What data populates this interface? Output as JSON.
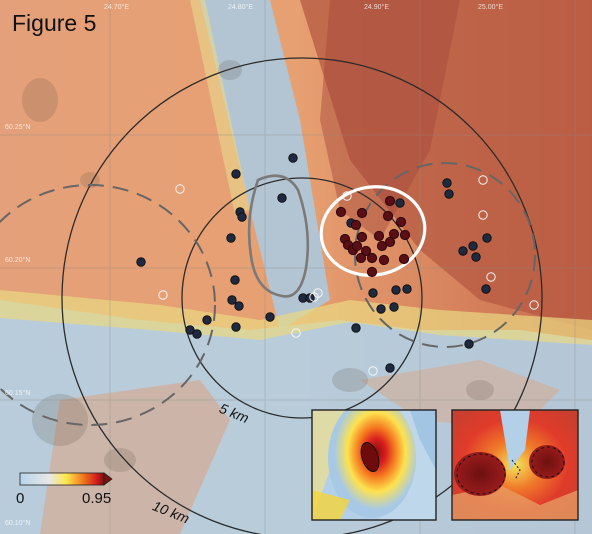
{
  "figure": {
    "title": "Figure 5",
    "top_ticks": [
      "24.70°E",
      "24.80°E",
      "24.90°E",
      "25.00°E"
    ],
    "left_ticks": [
      "60.25°N",
      "60.20°N",
      "60.15°N",
      "60.10°N"
    ]
  },
  "rings": [
    {
      "label": "5 km"
    },
    {
      "label": "10 km"
    }
  ],
  "colorbar": {
    "min": "0",
    "max": "0.95"
  },
  "colors": {
    "low": "#a9cbe3",
    "mid": "#e8d98c",
    "high": "#e57b4e",
    "max": "#8b2c22",
    "site_filled": "#1f2a40",
    "site_hot": "#5a0f17",
    "highlight": "#ffffff"
  },
  "points": {
    "filled_sites": 34,
    "hotspot_sites": 22,
    "open_sites": 11
  }
}
